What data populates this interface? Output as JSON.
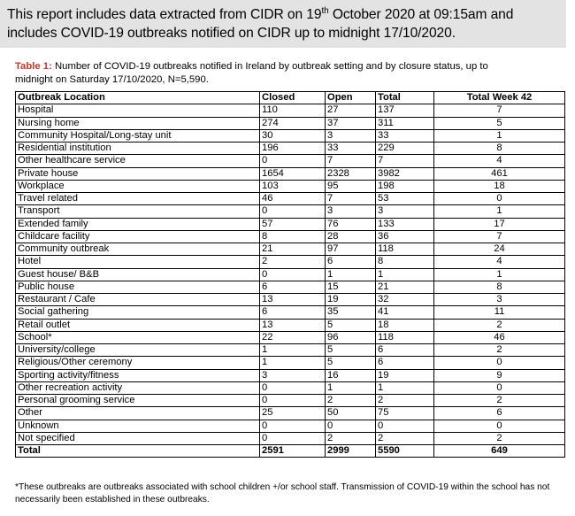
{
  "header": {
    "line1_pre": "This report includes data extracted from CIDR on 19",
    "line1_sup": "th",
    "line1_post": " October 2020 at 09:15am and",
    "line2": "includes COVID-19 outbreaks notified on CIDR up to midnight 17/10/2020."
  },
  "caption": {
    "label": "Table 1:",
    "text": " Number of COVID-19 outbreaks notified in Ireland by outbreak setting and by closure status, up to midnight on Saturday 17/10/2020, N=5,590."
  },
  "table": {
    "columns": [
      "Outbreak Location",
      "Closed",
      "Open",
      "Total",
      "Total Week 42"
    ],
    "rows": [
      [
        "Hospital",
        "110",
        "27",
        "137",
        "7"
      ],
      [
        "Nursing home",
        "274",
        "37",
        "311",
        "5"
      ],
      [
        "Community Hospital/Long-stay unit",
        "30",
        "3",
        "33",
        "1"
      ],
      [
        "Residential institution",
        "196",
        "33",
        "229",
        "8"
      ],
      [
        "Other healthcare service",
        "0",
        "7",
        "7",
        "4"
      ],
      [
        "Private house",
        "1654",
        "2328",
        "3982",
        "461"
      ],
      [
        "Workplace",
        "103",
        "95",
        "198",
        "18"
      ],
      [
        "Travel related",
        "46",
        "7",
        "53",
        "0"
      ],
      [
        "Transport",
        "0",
        "3",
        "3",
        "1"
      ],
      [
        "Extended family",
        "57",
        "76",
        "133",
        "17"
      ],
      [
        "Childcare facility",
        "8",
        "28",
        "36",
        "7"
      ],
      [
        "Community outbreak",
        "21",
        "97",
        "118",
        "24"
      ],
      [
        "Hotel",
        "2",
        "6",
        "8",
        "4"
      ],
      [
        "Guest house/ B&B",
        "0",
        "1",
        "1",
        "1"
      ],
      [
        "Public house",
        "6",
        "15",
        "21",
        "8"
      ],
      [
        "Restaurant / Cafe",
        "13",
        "19",
        "32",
        "3"
      ],
      [
        "Social gathering",
        "6",
        "35",
        "41",
        "11"
      ],
      [
        "Retail outlet",
        "13",
        "5",
        "18",
        "2"
      ],
      [
        "School*",
        "22",
        "96",
        "118",
        "46"
      ],
      [
        "University/college",
        "1",
        "5",
        "6",
        "2"
      ],
      [
        "Religious/Other ceremony",
        "1",
        "5",
        "6",
        "0"
      ],
      [
        "Sporting activity/fitness",
        "3",
        "16",
        "19",
        "9"
      ],
      [
        "Other recreation activity",
        "0",
        "1",
        "1",
        "0"
      ],
      [
        "Personal grooming service",
        "0",
        "2",
        "2",
        "2"
      ],
      [
        "Other",
        "25",
        "50",
        "75",
        "6"
      ],
      [
        "Unknown",
        "0",
        "0",
        "0",
        "0"
      ],
      [
        "Not specified",
        "0",
        "2",
        "2",
        "2"
      ]
    ],
    "total": [
      "Total",
      "2591",
      "2999",
      "5590",
      "649"
    ]
  },
  "footnote": "*These outbreaks are outbreaks associated with school children +/or school staff. Transmission of COVID-19 within the school has not necessarily been established in these outbreaks."
}
